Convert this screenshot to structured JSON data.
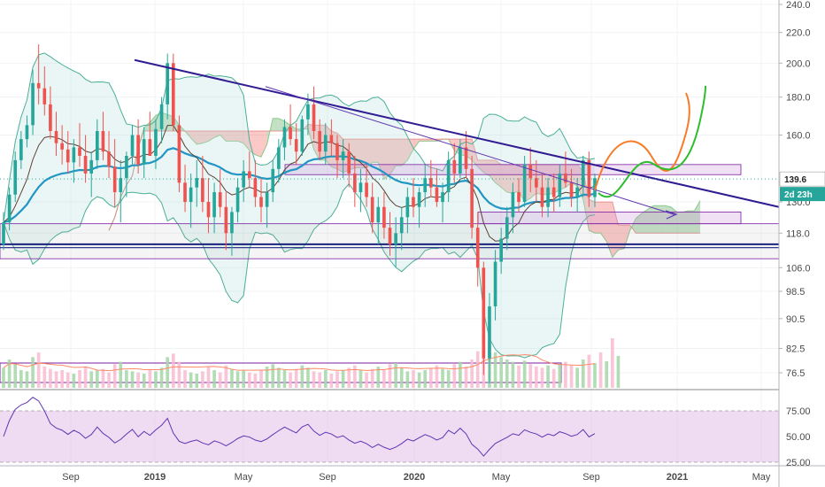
{
  "chart_data": {
    "type": "candlestick",
    "price_axis": {
      "scale": "log",
      "ticks": [
        240.0,
        220.0,
        200.0,
        180.0,
        160.0,
        139.6,
        130.0,
        118.0,
        106.0,
        98.5,
        90.5,
        82.5,
        76.5
      ]
    },
    "price_ticks_text": [
      "240.0",
      "220.0",
      "200.0",
      "180.0",
      "160.0",
      "130.0",
      "118.0",
      "106.0",
      "98.5",
      "90.5",
      "82.5",
      "76.5"
    ],
    "last_price": {
      "value": 139.6,
      "label": "139.6",
      "countdown": "2d 23h",
      "color": "#26a69a"
    },
    "time_axis": [
      "Sep",
      "2019",
      "May",
      "Sep",
      "2020",
      "May",
      "Sep",
      "2021",
      "May"
    ],
    "rsi": {
      "ticks": [
        "75.00",
        "50.00",
        "25.00"
      ],
      "upper": 75,
      "lower": 25
    },
    "colors": {
      "up": "#26a69a",
      "down": "#ef5350",
      "cloud_bull": "#43a047",
      "cloud_bear": "#ef5350",
      "trendline": "#311b92",
      "support": "#1a237e",
      "rsi_band": "#e1bee7",
      "rsi_line": "#5e35b1",
      "bb": "#4caf95",
      "ema_slow": "#2196c4",
      "ema_fast": "#5d4037",
      "forecast_green": "#2dbd2d",
      "forecast_orange": "#f77b28"
    },
    "candles": [
      [
        114,
        126,
        112,
        122
      ],
      [
        122,
        136,
        119,
        133
      ],
      [
        133,
        152,
        130,
        148
      ],
      [
        148,
        162,
        144,
        158
      ],
      [
        158,
        170,
        154,
        165
      ],
      [
        165,
        196,
        160,
        188
      ],
      [
        188,
        212,
        176,
        185
      ],
      [
        185,
        198,
        170,
        176
      ],
      [
        176,
        186,
        158,
        162
      ],
      [
        162,
        172,
        150,
        156
      ],
      [
        156,
        165,
        146,
        153
      ],
      [
        153,
        162,
        142,
        147
      ],
      [
        147,
        158,
        138,
        154
      ],
      [
        154,
        166,
        145,
        150
      ],
      [
        150,
        160,
        138,
        142
      ],
      [
        142,
        152,
        132,
        148
      ],
      [
        148,
        168,
        144,
        162
      ],
      [
        162,
        172,
        148,
        152
      ],
      [
        152,
        162,
        140,
        145
      ],
      [
        145,
        158,
        128,
        134
      ],
      [
        134,
        148,
        122,
        140
      ],
      [
        140,
        152,
        132,
        150
      ],
      [
        150,
        165,
        146,
        160
      ],
      [
        160,
        168,
        142,
        146
      ],
      [
        146,
        164,
        140,
        158
      ],
      [
        158,
        172,
        150,
        150
      ],
      [
        150,
        168,
        144,
        163
      ],
      [
        163,
        180,
        156,
        176
      ],
      [
        176,
        206,
        168,
        200
      ],
      [
        200,
        206,
        162,
        165
      ],
      [
        165,
        170,
        134,
        138
      ],
      [
        138,
        146,
        126,
        130
      ],
      [
        130,
        142,
        120,
        136
      ],
      [
        136,
        148,
        128,
        140
      ],
      [
        140,
        150,
        126,
        130
      ],
      [
        130,
        140,
        118,
        124
      ],
      [
        124,
        138,
        118,
        134
      ],
      [
        134,
        144,
        124,
        128
      ],
      [
        128,
        134,
        112,
        118
      ],
      [
        118,
        128,
        110,
        126
      ],
      [
        126,
        140,
        122,
        136
      ],
      [
        136,
        148,
        130,
        143
      ],
      [
        143,
        152,
        136,
        140
      ],
      [
        140,
        148,
        128,
        132
      ],
      [
        132,
        140,
        122,
        128
      ],
      [
        128,
        138,
        120,
        134
      ],
      [
        134,
        148,
        130,
        144
      ],
      [
        144,
        158,
        138,
        154
      ],
      [
        154,
        168,
        148,
        164
      ],
      [
        164,
        176,
        155,
        158
      ],
      [
        158,
        166,
        146,
        152
      ],
      [
        152,
        170,
        150,
        168
      ],
      [
        168,
        182,
        160,
        176
      ],
      [
        176,
        186,
        158,
        162
      ],
      [
        162,
        168,
        148,
        152
      ],
      [
        152,
        166,
        146,
        160
      ],
      [
        160,
        168,
        150,
        156
      ],
      [
        156,
        160,
        140,
        148
      ],
      [
        148,
        158,
        140,
        152
      ],
      [
        152,
        156,
        136,
        142
      ],
      [
        142,
        150,
        128,
        134
      ],
      [
        134,
        144,
        126,
        138
      ],
      [
        138,
        146,
        128,
        132
      ],
      [
        132,
        138,
        118,
        122
      ],
      [
        122,
        132,
        114,
        128
      ],
      [
        128,
        134,
        116,
        120
      ],
      [
        120,
        126,
        110,
        114
      ],
      [
        114,
        124,
        106,
        118
      ],
      [
        118,
        128,
        112,
        124
      ],
      [
        124,
        136,
        118,
        132
      ],
      [
        132,
        140,
        124,
        128
      ],
      [
        128,
        136,
        120,
        134
      ],
      [
        134,
        146,
        128,
        140
      ],
      [
        140,
        148,
        132,
        136
      ],
      [
        136,
        144,
        128,
        130
      ],
      [
        130,
        138,
        122,
        134
      ],
      [
        134,
        152,
        130,
        148
      ],
      [
        148,
        156,
        138,
        142
      ],
      [
        142,
        158,
        140,
        154
      ],
      [
        154,
        162,
        140,
        144
      ],
      [
        144,
        150,
        116,
        120
      ],
      [
        120,
        126,
        100,
        106
      ],
      [
        106,
        108,
        76,
        80
      ],
      [
        80,
        98,
        74,
        94
      ],
      [
        94,
        112,
        90,
        108
      ],
      [
        108,
        120,
        104,
        116
      ],
      [
        116,
        128,
        112,
        124
      ],
      [
        124,
        138,
        118,
        134
      ],
      [
        134,
        140,
        126,
        130
      ],
      [
        130,
        150,
        128,
        146
      ],
      [
        146,
        154,
        134,
        140
      ],
      [
        140,
        148,
        130,
        136
      ],
      [
        136,
        142,
        124,
        128
      ],
      [
        128,
        140,
        124,
        136
      ],
      [
        136,
        142,
        126,
        132
      ],
      [
        132,
        146,
        128,
        142
      ],
      [
        142,
        152,
        136,
        138
      ],
      [
        138,
        144,
        128,
        132
      ],
      [
        132,
        140,
        126,
        136
      ],
      [
        136,
        150,
        132,
        148
      ],
      [
        148,
        152,
        128,
        132
      ],
      [
        132,
        142,
        128,
        140
      ]
    ],
    "volume": [
      34,
      48,
      40,
      30,
      28,
      52,
      60,
      36,
      32,
      28,
      30,
      26,
      24,
      30,
      36,
      28,
      30,
      32,
      26,
      40,
      44,
      30,
      28,
      26,
      24,
      30,
      28,
      34,
      52,
      58,
      44,
      30,
      26,
      24,
      28,
      36,
      30,
      26,
      38,
      32,
      28,
      30,
      26,
      24,
      30,
      36,
      40,
      34,
      30,
      26,
      32,
      38,
      34,
      28,
      26,
      30,
      24,
      28,
      30,
      34,
      38,
      30,
      26,
      32,
      36,
      30,
      40,
      42,
      34,
      28,
      30,
      26,
      30,
      34,
      38,
      32,
      30,
      40,
      44,
      36,
      48,
      62,
      90,
      74,
      60,
      52,
      48,
      44,
      38,
      46,
      40,
      36,
      34,
      38,
      32,
      40,
      44,
      38,
      34,
      48,
      56,
      42
    ]
  }
}
